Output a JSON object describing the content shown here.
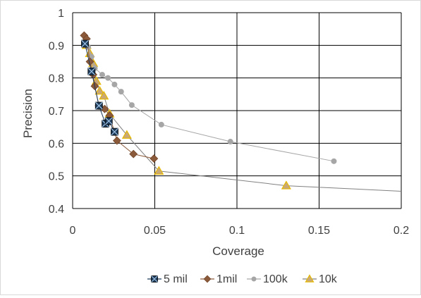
{
  "chart_data": {
    "type": "scatter",
    "title": "",
    "xlabel": "Coverage",
    "ylabel": "Precision",
    "xlim": [
      0,
      0.2
    ],
    "ylim": [
      0.4,
      1.0
    ],
    "x_ticks": [
      "0",
      "0.05",
      "0.1",
      "0.15",
      "0.2"
    ],
    "y_ticks": [
      "0.4",
      "0.5",
      "0.6",
      "0.7",
      "0.8",
      "0.9",
      "1"
    ],
    "grid": true,
    "legend_position": "bottom",
    "series": [
      {
        "name": "5 mil",
        "marker": "square-x",
        "color": "#1f3b5a",
        "x": [
          0.0075,
          0.0115,
          0.016,
          0.02,
          0.022,
          0.0255
        ],
        "y": [
          0.905,
          0.82,
          0.715,
          0.66,
          0.668,
          0.635
        ]
      },
      {
        "name": "1mil",
        "marker": "diamond",
        "color": "#8b5a3a",
        "x": [
          0.007,
          0.0085,
          0.0105,
          0.0125,
          0.0135,
          0.016,
          0.0195,
          0.0225,
          0.027,
          0.037,
          0.0495
        ],
        "y": [
          0.93,
          0.92,
          0.85,
          0.81,
          0.775,
          0.715,
          0.705,
          0.685,
          0.608,
          0.567,
          0.553
        ]
      },
      {
        "name": "100k",
        "marker": "circle",
        "color": "#a6a6a6",
        "x": [
          0.0095,
          0.0115,
          0.0135,
          0.018,
          0.0215,
          0.0255,
          0.0295,
          0.036,
          0.054,
          0.096,
          0.159
        ],
        "y": [
          0.895,
          0.865,
          0.83,
          0.81,
          0.8,
          0.78,
          0.758,
          0.717,
          0.657,
          0.605,
          0.545
        ]
      },
      {
        "name": "10k",
        "marker": "triangle",
        "color": "#e6b800",
        "x": [
          0.0085,
          0.0105,
          0.0125,
          0.0145,
          0.0165,
          0.019,
          0.0225,
          0.033,
          0.0525,
          0.13,
          0.2
        ],
        "y": [
          0.9,
          0.875,
          0.845,
          0.79,
          0.76,
          0.745,
          0.69,
          0.625,
          0.515,
          0.47,
          0.453
        ]
      }
    ]
  }
}
